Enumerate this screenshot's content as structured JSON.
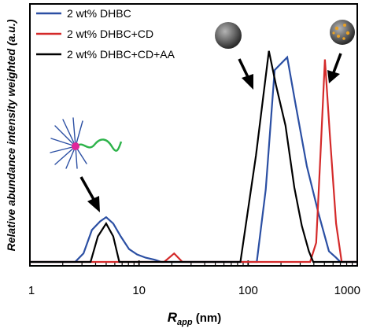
{
  "chart_data": {
    "type": "line",
    "xlabel_main": "R",
    "xlabel_sub": "app",
    "xlabel_unit": " (nm)",
    "ylabel": "Relative abundance intensity weighted (a.u.)",
    "xscale": "log",
    "xlim": [
      1,
      1000
    ],
    "ylim": [
      0,
      1
    ],
    "xticks": [
      1,
      10,
      100,
      1000
    ],
    "xtick_labels": [
      "1",
      "10",
      "100",
      "1000"
    ],
    "legend_position": "top-left",
    "series": [
      {
        "name": "2 wt% DHBC",
        "color": "#2b4fa3",
        "points": [
          [
            1,
            0
          ],
          [
            2.6,
            0
          ],
          [
            3.1,
            0.04
          ],
          [
            3.7,
            0.15
          ],
          [
            4.4,
            0.19
          ],
          [
            5.0,
            0.21
          ],
          [
            5.8,
            0.18
          ],
          [
            6.8,
            0.12
          ],
          [
            8.1,
            0.06
          ],
          [
            9.6,
            0.035
          ],
          [
            11.5,
            0.02
          ],
          [
            14,
            0.01
          ],
          [
            16,
            0
          ],
          [
            120,
            0
          ],
          [
            145,
            0.34
          ],
          [
            175,
            0.9
          ],
          [
            228,
            0.96
          ],
          [
            270,
            0.75
          ],
          [
            345,
            0.45
          ],
          [
            440,
            0.23
          ],
          [
            550,
            0.05
          ],
          [
            640,
            0.02
          ],
          [
            700,
            0
          ],
          [
            1000,
            0
          ]
        ]
      },
      {
        "name": "2 wt% DHBC+CD",
        "color": "#d42a2a",
        "points": [
          [
            1,
            0
          ],
          [
            17,
            0
          ],
          [
            21,
            0.04
          ],
          [
            25,
            0
          ],
          [
            370,
            0
          ],
          [
            420,
            0.09
          ],
          [
            460,
            0.5
          ],
          [
            505,
            0.95
          ],
          [
            560,
            0.6
          ],
          [
            640,
            0.18
          ],
          [
            720,
            0
          ],
          [
            1000,
            0
          ]
        ]
      },
      {
        "name": "2 wt% DHBC+CD+AA",
        "color": "#000000",
        "points": [
          [
            1,
            0
          ],
          [
            3.6,
            0
          ],
          [
            4.2,
            0.12
          ],
          [
            5.0,
            0.18
          ],
          [
            5.8,
            0.12
          ],
          [
            6.6,
            0
          ],
          [
            85,
            0
          ],
          [
            118,
            0.5
          ],
          [
            155,
            0.99
          ],
          [
            180,
            0.83
          ],
          [
            220,
            0.64
          ],
          [
            265,
            0.35
          ],
          [
            310,
            0.17
          ],
          [
            360,
            0.05
          ],
          [
            395,
            0
          ],
          [
            1000,
            0
          ]
        ]
      }
    ]
  }
}
